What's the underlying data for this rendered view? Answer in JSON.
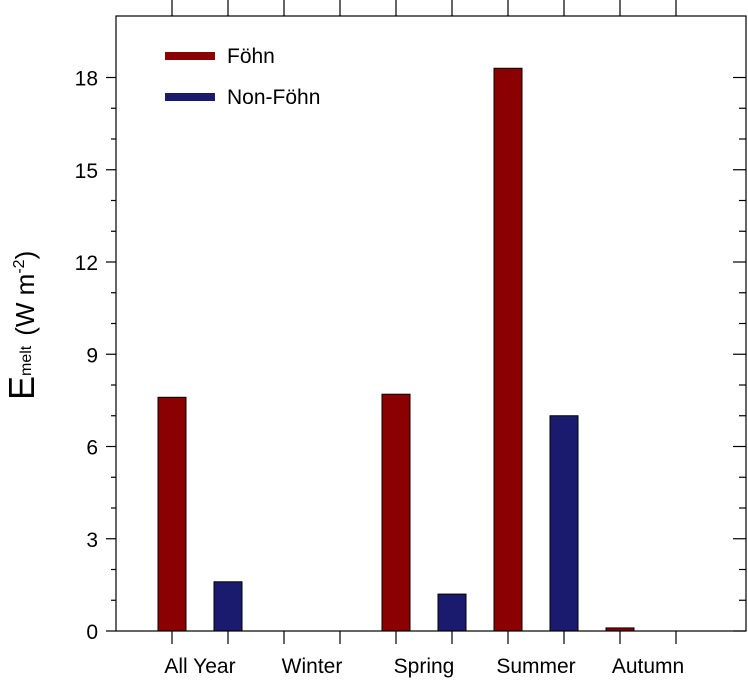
{
  "chart_data": {
    "type": "bar",
    "y_label": {
      "symbol": "E",
      "subscript": "melt",
      "unit_open": "(W m",
      "exponent": "-2",
      "unit_close": ")"
    },
    "categories": [
      "All Year",
      "Winter",
      "Spring",
      "Summer",
      "Autumn"
    ],
    "series": [
      {
        "name": "Föhn",
        "color": "#8b0000",
        "values": [
          7.6,
          0,
          7.7,
          18.3,
          0.1
        ]
      },
      {
        "name": "Non-Föhn",
        "color": "#1a1a6e",
        "values": [
          1.6,
          0,
          1.2,
          7.0,
          0
        ]
      }
    ],
    "ylim": [
      0,
      20
    ],
    "yticks": [
      0,
      3,
      6,
      9,
      12,
      15,
      18
    ],
    "legend": "upper-left"
  }
}
